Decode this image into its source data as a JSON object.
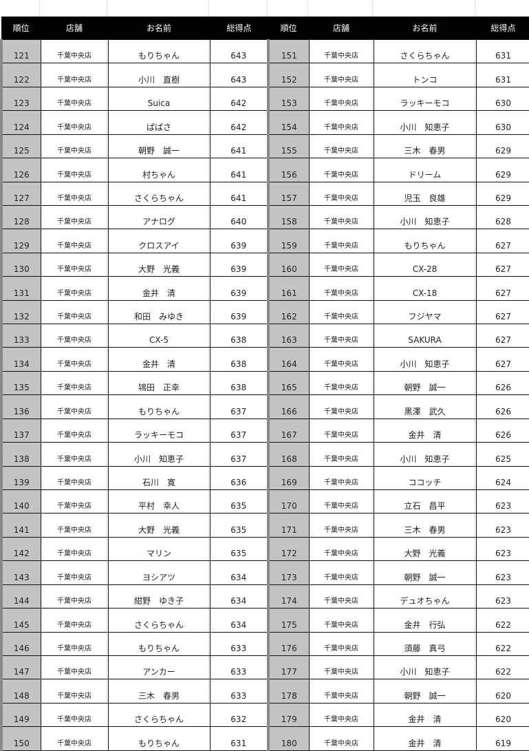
{
  "headers": {
    "rank": "順位",
    "store": "店舗",
    "name": "お名前",
    "score": "総得点"
  },
  "left_rows": [
    {
      "rank": "121",
      "store": "千葉中央店",
      "name": "もりちゃん",
      "score": "643"
    },
    {
      "rank": "122",
      "store": "千葉中央店",
      "name": "小川　直樹",
      "score": "643"
    },
    {
      "rank": "123",
      "store": "千葉中央店",
      "name": "Suica",
      "score": "642"
    },
    {
      "rank": "124",
      "store": "千葉中央店",
      "name": "ぱぱさ",
      "score": "642"
    },
    {
      "rank": "125",
      "store": "千葉中央店",
      "name": "朝野　誠一",
      "score": "641"
    },
    {
      "rank": "126",
      "store": "千葉中央店",
      "name": "村ちゃん",
      "score": "641"
    },
    {
      "rank": "127",
      "store": "千葉中央店",
      "name": "さくらちゃん",
      "score": "641"
    },
    {
      "rank": "128",
      "store": "千葉中央店",
      "name": "アナログ",
      "score": "640"
    },
    {
      "rank": "129",
      "store": "千葉中央店",
      "name": "クロスアイ",
      "score": "639"
    },
    {
      "rank": "130",
      "store": "千葉中央店",
      "name": "大野　光義",
      "score": "639"
    },
    {
      "rank": "131",
      "store": "千葉中央店",
      "name": "金井　清",
      "score": "639"
    },
    {
      "rank": "132",
      "store": "千葉中央店",
      "name": "和田　みゆき",
      "score": "639"
    },
    {
      "rank": "133",
      "store": "千葉中央店",
      "name": "CX-5",
      "score": "638"
    },
    {
      "rank": "134",
      "store": "千葉中央店",
      "name": "金井　清",
      "score": "638"
    },
    {
      "rank": "135",
      "store": "千葉中央店",
      "name": "鴇田　正幸",
      "score": "638"
    },
    {
      "rank": "136",
      "store": "千葉中央店",
      "name": "もりちゃん",
      "score": "637"
    },
    {
      "rank": "137",
      "store": "千葉中央店",
      "name": "ラッキーモコ",
      "score": "637"
    },
    {
      "rank": "138",
      "store": "千葉中央店",
      "name": "小川　知恵子",
      "score": "637"
    },
    {
      "rank": "139",
      "store": "千葉中央店",
      "name": "石川　寛",
      "score": "636"
    },
    {
      "rank": "140",
      "store": "千葉中央店",
      "name": "平村　幸人",
      "score": "635"
    },
    {
      "rank": "141",
      "store": "千葉中央店",
      "name": "大野　光義",
      "score": "635"
    },
    {
      "rank": "142",
      "store": "千葉中央店",
      "name": "マリン",
      "score": "635"
    },
    {
      "rank": "143",
      "store": "千葉中央店",
      "name": "ヨシアツ",
      "score": "634"
    },
    {
      "rank": "144",
      "store": "千葉中央店",
      "name": "紺野　ゆき子",
      "score": "634"
    },
    {
      "rank": "145",
      "store": "千葉中央店",
      "name": "さくらちゃん",
      "score": "634"
    },
    {
      "rank": "146",
      "store": "千葉中央店",
      "name": "もりちゃん",
      "score": "633"
    },
    {
      "rank": "147",
      "store": "千葉中央店",
      "name": "アンカー",
      "score": "633"
    },
    {
      "rank": "148",
      "store": "千葉中央店",
      "name": "三木　春男",
      "score": "633"
    },
    {
      "rank": "149",
      "store": "千葉中央店",
      "name": "さくらちゃん",
      "score": "632"
    },
    {
      "rank": "150",
      "store": "千葉中央店",
      "name": "もりちゃん",
      "score": "631"
    }
  ],
  "right_rows": [
    {
      "rank": "151",
      "store": "千葉中央店",
      "name": "さくらちゃん",
      "score": "631"
    },
    {
      "rank": "152",
      "store": "千葉中央店",
      "name": "トンコ",
      "score": "631"
    },
    {
      "rank": "153",
      "store": "千葉中央店",
      "name": "ラッキーモコ",
      "score": "630"
    },
    {
      "rank": "154",
      "store": "千葉中央店",
      "name": "小川　知恵子",
      "score": "630"
    },
    {
      "rank": "155",
      "store": "千葉中央店",
      "name": "三木　春男",
      "score": "629"
    },
    {
      "rank": "156",
      "store": "千葉中央店",
      "name": "ドリーム",
      "score": "629"
    },
    {
      "rank": "157",
      "store": "千葉中央店",
      "name": "児玉　良雄",
      "score": "629"
    },
    {
      "rank": "158",
      "store": "千葉中央店",
      "name": "小川　知恵子",
      "score": "628"
    },
    {
      "rank": "159",
      "store": "千葉中央店",
      "name": "もりちゃん",
      "score": "627"
    },
    {
      "rank": "160",
      "store": "千葉中央店",
      "name": "CX-28",
      "score": "627"
    },
    {
      "rank": "161",
      "store": "千葉中央店",
      "name": "CX-18",
      "score": "627"
    },
    {
      "rank": "162",
      "store": "千葉中央店",
      "name": "フジヤマ",
      "score": "627"
    },
    {
      "rank": "163",
      "store": "千葉中央店",
      "name": "SAKURA",
      "score": "627"
    },
    {
      "rank": "164",
      "store": "千葉中央店",
      "name": "小川　知恵子",
      "score": "627"
    },
    {
      "rank": "165",
      "store": "千葉中央店",
      "name": "朝野　誠一",
      "score": "626"
    },
    {
      "rank": "166",
      "store": "千葉中央店",
      "name": "黒澤　武久",
      "score": "626"
    },
    {
      "rank": "167",
      "store": "千葉中央店",
      "name": "金井　清",
      "score": "626"
    },
    {
      "rank": "168",
      "store": "千葉中央店",
      "name": "小川　知恵子",
      "score": "625"
    },
    {
      "rank": "169",
      "store": "千葉中央店",
      "name": "ココッチ",
      "score": "624"
    },
    {
      "rank": "170",
      "store": "千葉中央店",
      "name": "立石　昌平",
      "score": "623"
    },
    {
      "rank": "171",
      "store": "千葉中央店",
      "name": "三木　春男",
      "score": "623"
    },
    {
      "rank": "172",
      "store": "千葉中央店",
      "name": "大野　光義",
      "score": "623"
    },
    {
      "rank": "173",
      "store": "千葉中央店",
      "name": "朝野　誠一",
      "score": "623"
    },
    {
      "rank": "174",
      "store": "千葉中央店",
      "name": "デュオちゃん",
      "score": "623"
    },
    {
      "rank": "175",
      "store": "千葉中央店",
      "name": "金井　行弘",
      "score": "622"
    },
    {
      "rank": "176",
      "store": "千葉中央店",
      "name": "須藤　真弓",
      "score": "622"
    },
    {
      "rank": "177",
      "store": "千葉中央店",
      "name": "小川　知恵子",
      "score": "622"
    },
    {
      "rank": "178",
      "store": "千葉中央店",
      "name": "朝野　誠一",
      "score": "620"
    },
    {
      "rank": "179",
      "store": "千葉中央店",
      "name": "金井　清",
      "score": "620"
    },
    {
      "rank": "180",
      "store": "千葉中央店",
      "name": "金井　清",
      "score": "619"
    }
  ]
}
